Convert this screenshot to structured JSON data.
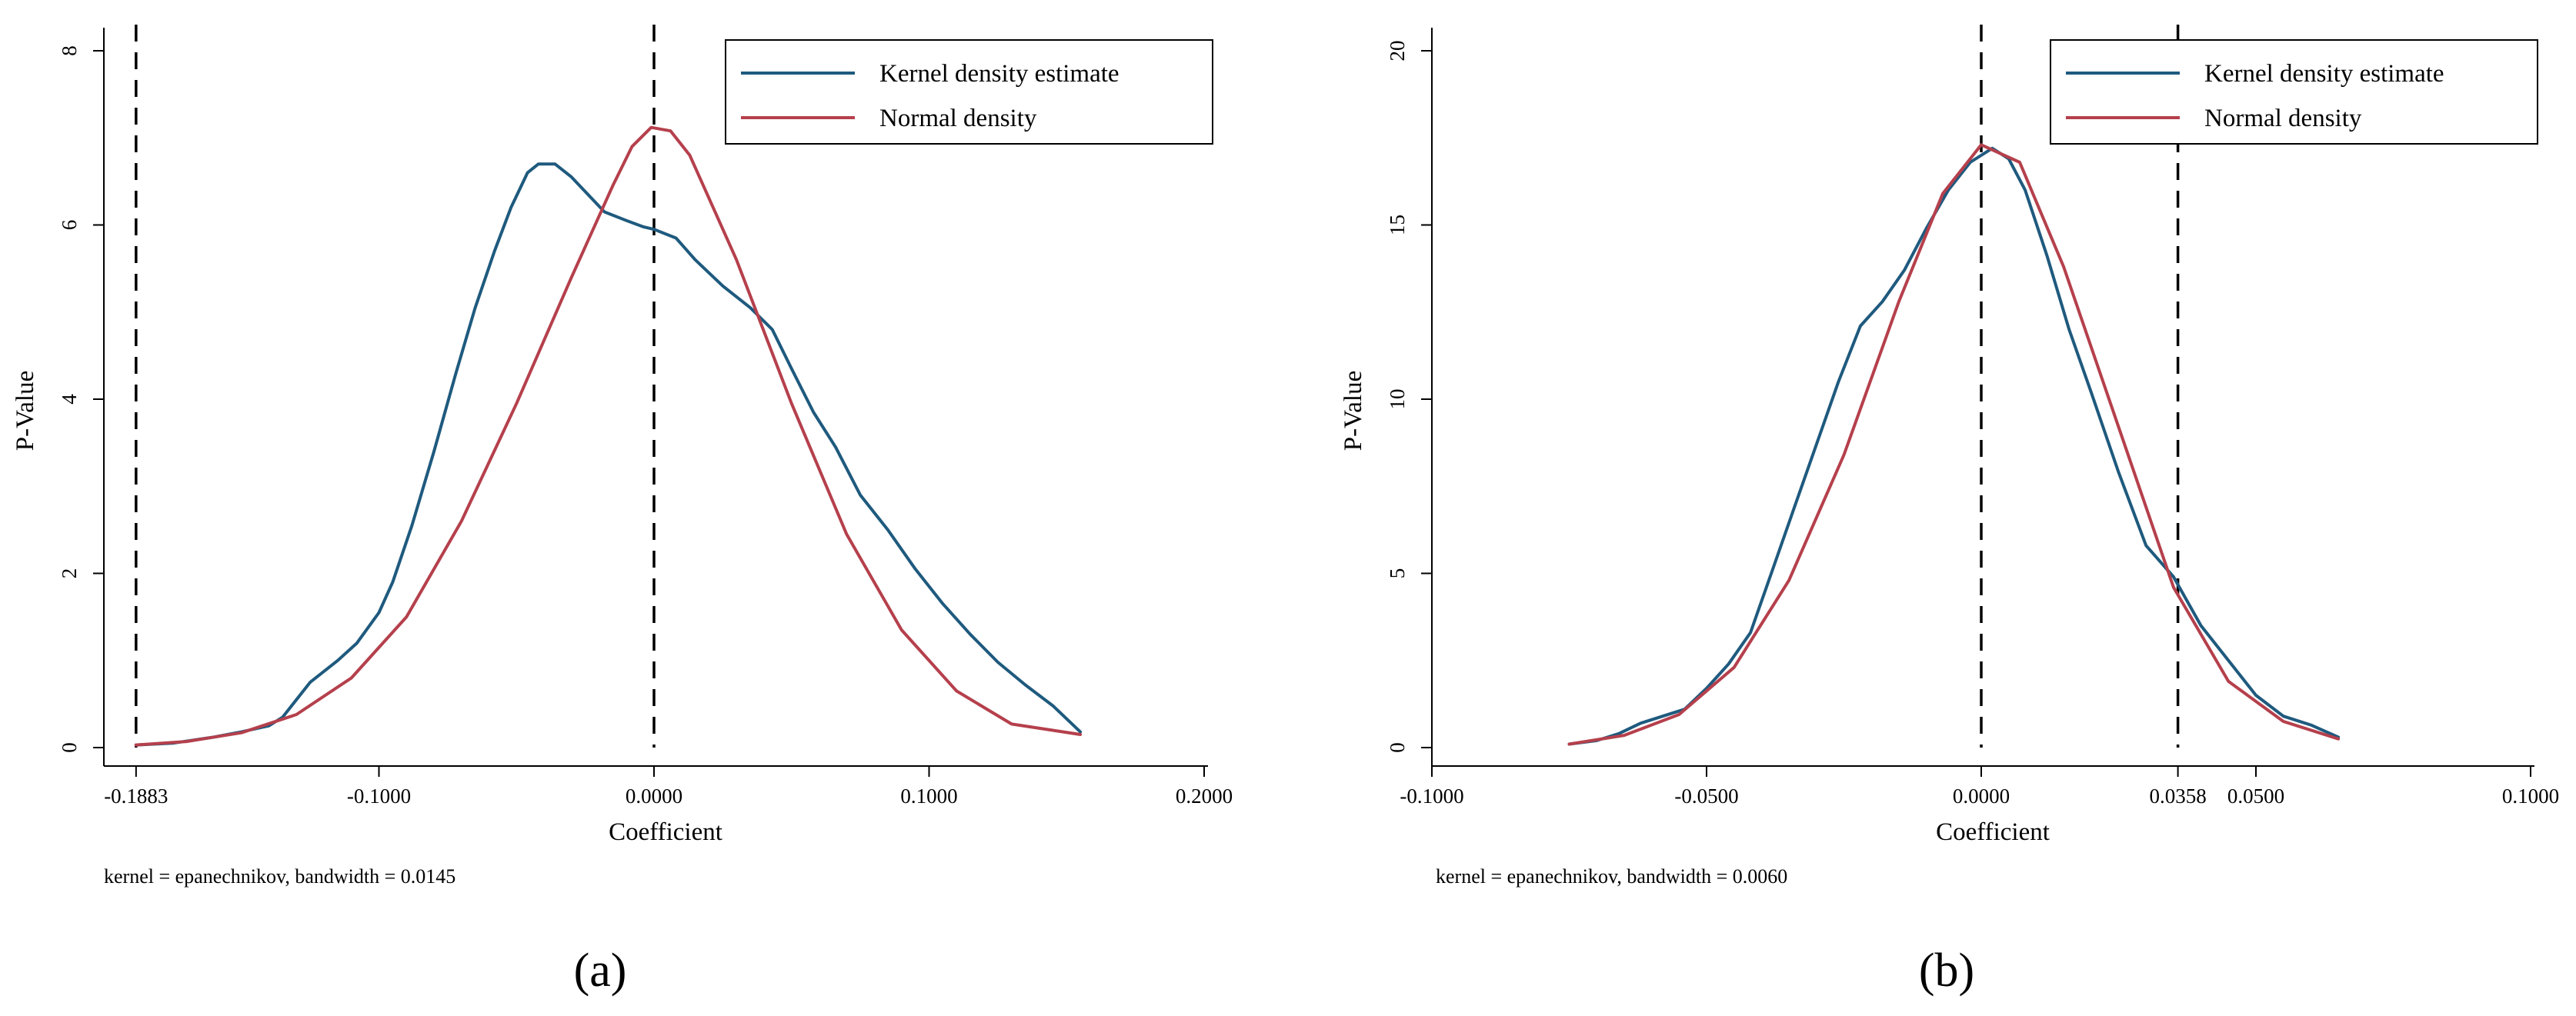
{
  "chart_data": [
    {
      "type": "line",
      "xlabel": "Coefficient",
      "ylabel": "P-Value",
      "xlim": [
        -0.2,
        0.2
      ],
      "ylim": [
        0,
        8
      ],
      "xticks": [
        {
          "value": -0.1883,
          "label": "-0.1883"
        },
        {
          "value": -0.1,
          "label": "-0.1000"
        },
        {
          "value": 0.0,
          "label": "0.0000"
        },
        {
          "value": 0.1,
          "label": "0.1000"
        },
        {
          "value": 0.2,
          "label": "0.2000"
        }
      ],
      "yticks": [
        {
          "value": 0,
          "label": "0"
        },
        {
          "value": 2,
          "label": "2"
        },
        {
          "value": 4,
          "label": "4"
        },
        {
          "value": 6,
          "label": "6"
        },
        {
          "value": 8,
          "label": "8"
        }
      ],
      "vlines": [
        -0.1883,
        0.0
      ],
      "legend": [
        "Kernel density estimate",
        "Normal density"
      ],
      "legend_position": "top-right",
      "note": "kernel = epanechnikov, bandwidth = 0.0145",
      "caption": "(a)",
      "series": [
        {
          "name": "Kernel density estimate",
          "color": "#1f5a7e",
          "x": [
            -0.1883,
            -0.175,
            -0.16,
            -0.15,
            -0.14,
            -0.135,
            -0.125,
            -0.115,
            -0.108,
            -0.1,
            -0.095,
            -0.088,
            -0.08,
            -0.072,
            -0.065,
            -0.058,
            -0.052,
            -0.046,
            -0.042,
            -0.036,
            -0.03,
            -0.024,
            -0.018,
            -0.01,
            -0.004,
            0.0,
            0.008,
            0.015,
            0.025,
            0.035,
            0.043,
            0.05,
            0.058,
            0.066,
            0.075,
            0.085,
            0.095,
            0.105,
            0.115,
            0.125,
            0.135,
            0.145,
            0.155
          ],
          "y": [
            0.03,
            0.05,
            0.12,
            0.18,
            0.25,
            0.35,
            0.75,
            1.0,
            1.2,
            1.55,
            1.9,
            2.55,
            3.4,
            4.3,
            5.05,
            5.7,
            6.2,
            6.6,
            6.7,
            6.7,
            6.55,
            6.35,
            6.15,
            6.05,
            5.98,
            5.95,
            5.85,
            5.6,
            5.3,
            5.05,
            4.8,
            4.35,
            3.85,
            3.45,
            2.9,
            2.5,
            2.05,
            1.65,
            1.3,
            0.98,
            0.72,
            0.48,
            0.18
          ]
        },
        {
          "name": "Normal density",
          "color": "#b5404c",
          "x": [
            -0.1883,
            -0.17,
            -0.15,
            -0.13,
            -0.11,
            -0.09,
            -0.07,
            -0.05,
            -0.03,
            -0.015,
            -0.008,
            -0.001,
            0.006,
            0.013,
            0.03,
            0.05,
            0.07,
            0.09,
            0.11,
            0.13,
            0.155
          ],
          "y": [
            0.03,
            0.07,
            0.17,
            0.38,
            0.8,
            1.5,
            2.6,
            3.95,
            5.4,
            6.45,
            6.9,
            7.12,
            7.08,
            6.8,
            5.6,
            3.95,
            2.45,
            1.35,
            0.65,
            0.27,
            0.15
          ]
        }
      ]
    },
    {
      "type": "line",
      "xlabel": "Coefficient",
      "ylabel": "P-Value",
      "xlim": [
        -0.1,
        0.1
      ],
      "ylim": [
        0,
        20
      ],
      "xticks": [
        {
          "value": -0.1,
          "label": "-0.1000"
        },
        {
          "value": -0.05,
          "label": "-0.0500"
        },
        {
          "value": 0.0,
          "label": "0.0000"
        },
        {
          "value": 0.0358,
          "label": "0.0358"
        },
        {
          "value": 0.05,
          "label": "0.0500"
        },
        {
          "value": 0.1,
          "label": "0.1000"
        }
      ],
      "yticks": [
        {
          "value": 0,
          "label": "0"
        },
        {
          "value": 5,
          "label": "5"
        },
        {
          "value": 10,
          "label": "10"
        },
        {
          "value": 15,
          "label": "15"
        },
        {
          "value": 20,
          "label": "20"
        }
      ],
      "vlines": [
        0.0,
        0.0358
      ],
      "legend": [
        "Kernel density estimate",
        "Normal density"
      ],
      "legend_position": "top-right",
      "note": "kernel = epanechnikov, bandwidth = 0.0060",
      "caption": "(b)",
      "series": [
        {
          "name": "Kernel density estimate",
          "color": "#1f5a7e",
          "x": [
            -0.075,
            -0.07,
            -0.066,
            -0.062,
            -0.058,
            -0.054,
            -0.05,
            -0.046,
            -0.042,
            -0.038,
            -0.034,
            -0.03,
            -0.026,
            -0.022,
            -0.018,
            -0.014,
            -0.01,
            -0.006,
            -0.002,
            0.002,
            0.005,
            0.008,
            0.012,
            0.016,
            0.02,
            0.025,
            0.03,
            0.035,
            0.04,
            0.045,
            0.05,
            0.055,
            0.06,
            0.065
          ],
          "y": [
            0.1,
            0.2,
            0.4,
            0.7,
            0.9,
            1.1,
            1.7,
            2.4,
            3.3,
            5.1,
            6.9,
            8.7,
            10.5,
            12.1,
            12.8,
            13.7,
            14.9,
            16.0,
            16.8,
            17.2,
            16.9,
            16.0,
            14.1,
            12.0,
            10.2,
            7.9,
            5.8,
            4.9,
            3.5,
            2.5,
            1.5,
            0.9,
            0.65,
            0.3
          ]
        },
        {
          "name": "Normal density",
          "color": "#b5404c",
          "x": [
            -0.075,
            -0.065,
            -0.055,
            -0.045,
            -0.035,
            -0.025,
            -0.015,
            -0.007,
            0.0,
            0.007,
            0.015,
            0.025,
            0.035,
            0.045,
            0.055,
            0.065
          ],
          "y": [
            0.1,
            0.35,
            0.95,
            2.3,
            4.8,
            8.4,
            12.8,
            15.9,
            17.3,
            16.8,
            13.8,
            9.2,
            4.6,
            1.9,
            0.75,
            0.25
          ]
        }
      ]
    }
  ]
}
